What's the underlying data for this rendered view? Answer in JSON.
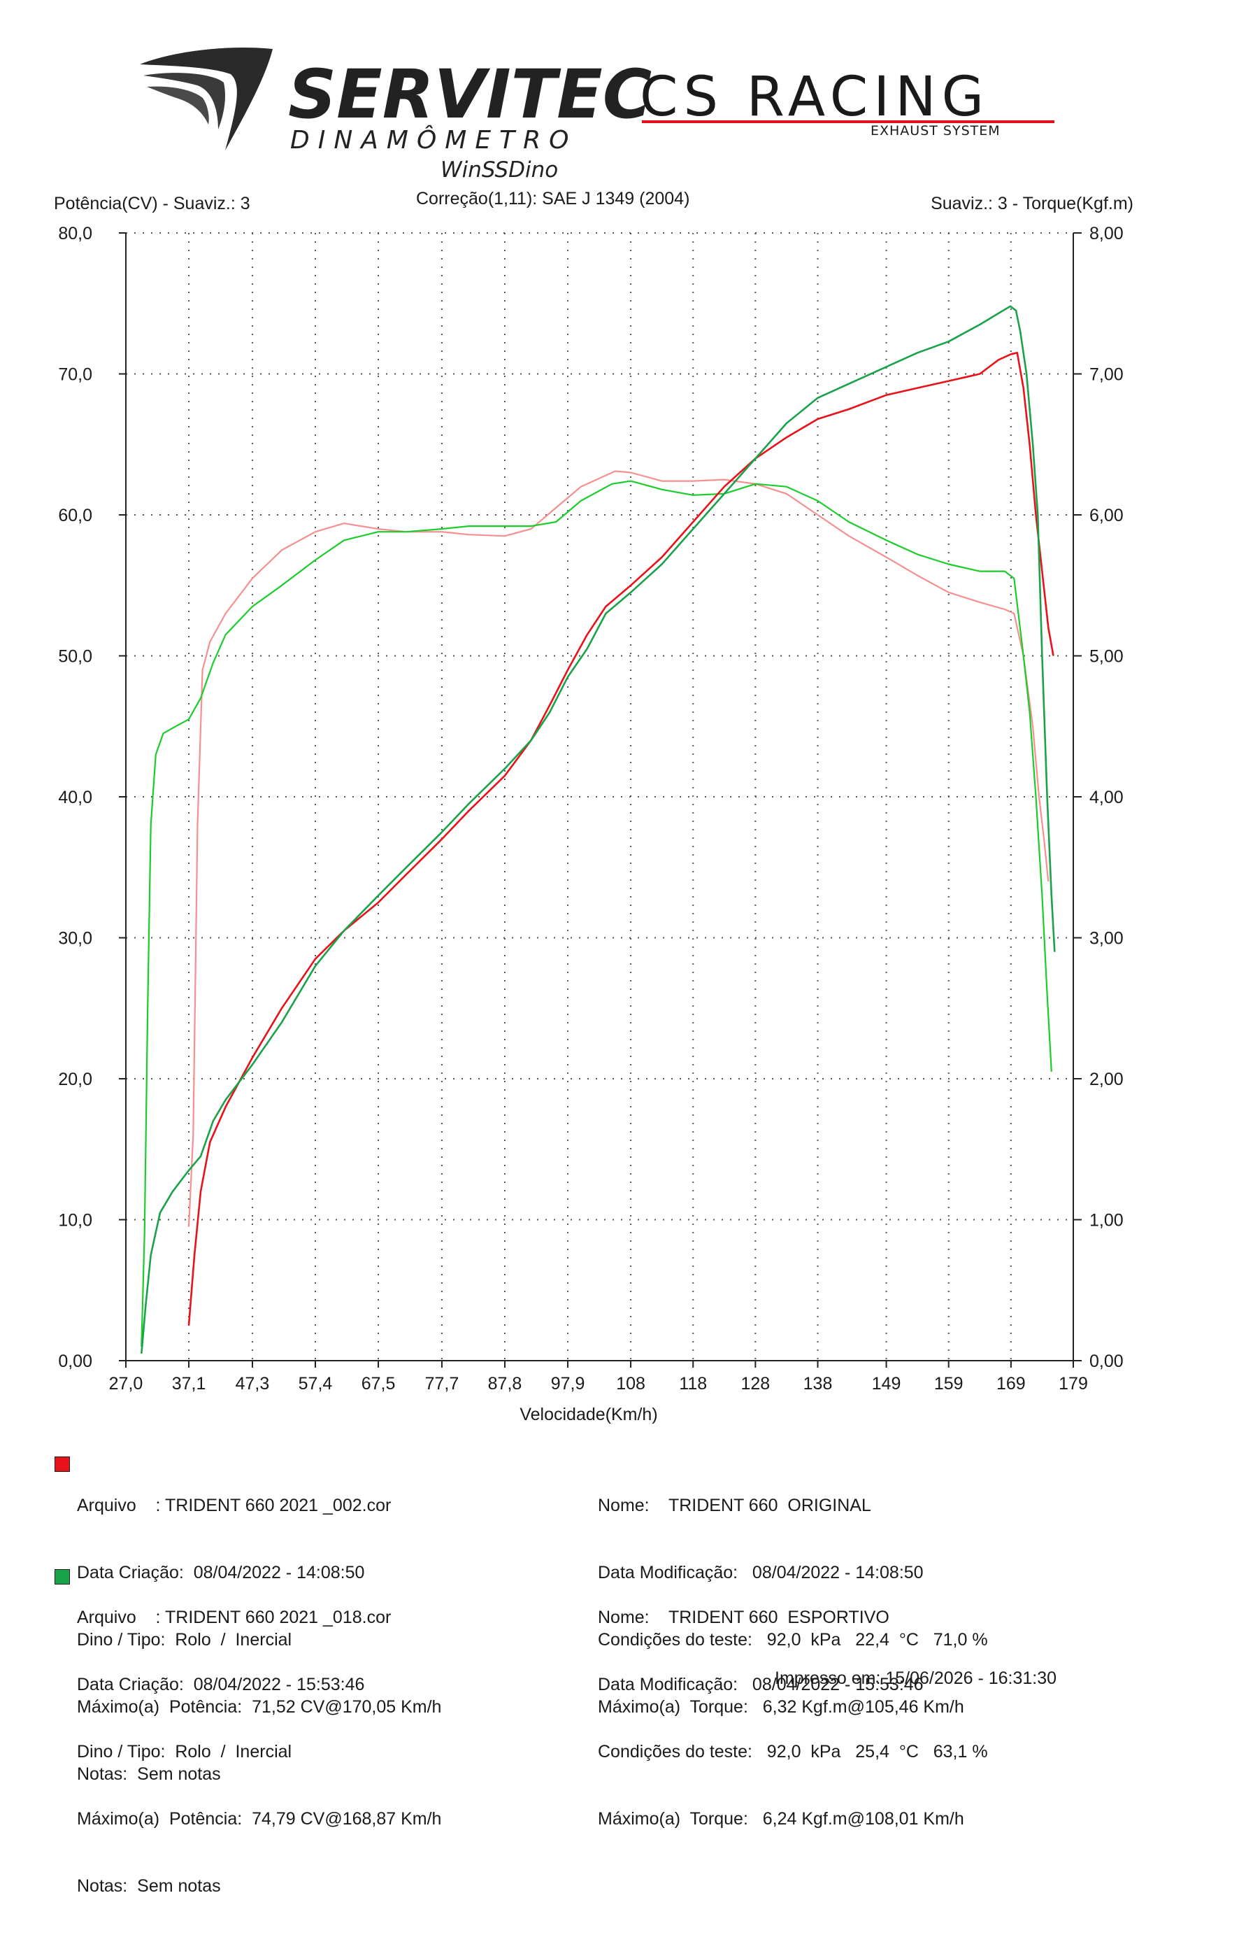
{
  "brand": {
    "servitec": "SERVITEC",
    "dinamometro": "DINAMÔMETRO",
    "software": "WinSSDino",
    "csracing": "CS RACING",
    "exhaust": "EXHAUST SYSTEM",
    "logo_red": "#e3101b"
  },
  "header": {
    "left_axis_title": "Potência(CV) - Suaviz.: 3",
    "correction": "Correção(1,11): SAE J 1349 (2004)",
    "right_axis_title": "Suaviz.: 3 - Torque(Kgf.m)"
  },
  "chart_data": {
    "type": "line",
    "xlabel": "Velocidade(Km/h)",
    "ylabel": "Potência(CV)",
    "y2label": "Torque(Kgf.m)",
    "xlim": [
      27.0,
      179
    ],
    "ylim": [
      0,
      80
    ],
    "y2lim": [
      0,
      8
    ],
    "grid": true,
    "x_tick_values": [
      27.0,
      37.1,
      47.3,
      57.4,
      67.5,
      77.7,
      87.8,
      97.9,
      108,
      118,
      128,
      138,
      149,
      159,
      169,
      179
    ],
    "x_tick_labels": [
      "27,0",
      "37,1",
      "47,3",
      "57,4",
      "67,5",
      "77,7",
      "87,8",
      "97,9",
      "108",
      "118",
      "128",
      "138",
      "149",
      "159",
      "169",
      "179"
    ],
    "y_tick_values": [
      0,
      10,
      20,
      30,
      40,
      50,
      60,
      70,
      80
    ],
    "y_tick_labels": [
      "0,00",
      "10,0",
      "20,0",
      "30,0",
      "40,0",
      "50,0",
      "60,0",
      "70,0",
      "80,0"
    ],
    "y2_tick_values": [
      0,
      1,
      2,
      3,
      4,
      5,
      6,
      7,
      8
    ],
    "y2_tick_labels": [
      "0,00",
      "1,00",
      "2,00",
      "3,00",
      "4,00",
      "5,00",
      "6,00",
      "7,00",
      "8,00"
    ],
    "series": [
      {
        "name": "TRIDENT 660 ORIGINAL",
        "kind": "power",
        "axis": "left",
        "color": "#e8131a",
        "points": [
          [
            37.1,
            2.5
          ],
          [
            38.0,
            7.5
          ],
          [
            39.0,
            12
          ],
          [
            40.5,
            15.5
          ],
          [
            43,
            18
          ],
          [
            47.3,
            21.5
          ],
          [
            52,
            25
          ],
          [
            57.4,
            28.5
          ],
          [
            62,
            30.5
          ],
          [
            67.5,
            32.5
          ],
          [
            72,
            34.5
          ],
          [
            77.7,
            37
          ],
          [
            82,
            39
          ],
          [
            87.8,
            41.5
          ],
          [
            92,
            44
          ],
          [
            95,
            46.5
          ],
          [
            97.9,
            49
          ],
          [
            101,
            51.5
          ],
          [
            104,
            53.5
          ],
          [
            108,
            55
          ],
          [
            113,
            57
          ],
          [
            118,
            59.5
          ],
          [
            123,
            62
          ],
          [
            128,
            64
          ],
          [
            133,
            65.5
          ],
          [
            138,
            66.8
          ],
          [
            143,
            67.5
          ],
          [
            149,
            68.5
          ],
          [
            154,
            69
          ],
          [
            159,
            69.5
          ],
          [
            164,
            70
          ],
          [
            167,
            71
          ],
          [
            169,
            71.4
          ],
          [
            170,
            71.5
          ],
          [
            171,
            69
          ],
          [
            172,
            65
          ],
          [
            173,
            60
          ],
          [
            174,
            56
          ],
          [
            175,
            52
          ],
          [
            175.8,
            50
          ]
        ]
      },
      {
        "name": "TRIDENT 660 ORIGINAL",
        "kind": "torque",
        "axis": "right",
        "color": "#f68f8f",
        "points": [
          [
            37.1,
            0.95
          ],
          [
            37.8,
            1.6
          ],
          [
            38.5,
            3.8
          ],
          [
            39.3,
            4.9
          ],
          [
            40.5,
            5.1
          ],
          [
            43,
            5.3
          ],
          [
            47.3,
            5.55
          ],
          [
            52,
            5.75
          ],
          [
            57.4,
            5.88
          ],
          [
            62,
            5.94
          ],
          [
            67.5,
            5.9
          ],
          [
            72,
            5.88
          ],
          [
            77.7,
            5.88
          ],
          [
            82,
            5.86
          ],
          [
            87.8,
            5.85
          ],
          [
            92,
            5.9
          ],
          [
            96,
            6.05
          ],
          [
            100,
            6.2
          ],
          [
            105.5,
            6.31
          ],
          [
            108,
            6.3
          ],
          [
            113,
            6.24
          ],
          [
            118,
            6.24
          ],
          [
            123,
            6.25
          ],
          [
            128,
            6.22
          ],
          [
            133,
            6.15
          ],
          [
            138,
            6.0
          ],
          [
            143,
            5.85
          ],
          [
            149,
            5.7
          ],
          [
            154,
            5.57
          ],
          [
            159,
            5.45
          ],
          [
            164,
            5.38
          ],
          [
            168,
            5.33
          ],
          [
            169.5,
            5.3
          ],
          [
            171,
            5.0
          ],
          [
            172.5,
            4.5
          ],
          [
            173.5,
            4.0
          ],
          [
            174.3,
            3.7
          ],
          [
            175,
            3.4
          ]
        ]
      },
      {
        "name": "TRIDENT 660 ESPORTIVO",
        "kind": "power",
        "axis": "left",
        "color": "#1aa24b",
        "points": [
          [
            29.5,
            0.5
          ],
          [
            30.2,
            4
          ],
          [
            31,
            7.5
          ],
          [
            32.5,
            10.5
          ],
          [
            34.5,
            12
          ],
          [
            37.1,
            13.5
          ],
          [
            39,
            14.5
          ],
          [
            41,
            17
          ],
          [
            43,
            18.5
          ],
          [
            47.3,
            21
          ],
          [
            52,
            24
          ],
          [
            57.4,
            28
          ],
          [
            62,
            30.5
          ],
          [
            67.5,
            33
          ],
          [
            72,
            35
          ],
          [
            77.7,
            37.5
          ],
          [
            82,
            39.5
          ],
          [
            87.8,
            42
          ],
          [
            92,
            44
          ],
          [
            95,
            46
          ],
          [
            97.9,
            48.5
          ],
          [
            101,
            50.5
          ],
          [
            104,
            53
          ],
          [
            108,
            54.5
          ],
          [
            113,
            56.5
          ],
          [
            118,
            59
          ],
          [
            123,
            61.5
          ],
          [
            128,
            64
          ],
          [
            133,
            66.5
          ],
          [
            138,
            68.3
          ],
          [
            143,
            69.3
          ],
          [
            149,
            70.5
          ],
          [
            154,
            71.5
          ],
          [
            159,
            72.3
          ],
          [
            164,
            73.5
          ],
          [
            167,
            74.3
          ],
          [
            168.9,
            74.8
          ],
          [
            169.8,
            74.5
          ],
          [
            170.5,
            73
          ],
          [
            171.5,
            70
          ],
          [
            172.5,
            65
          ],
          [
            173.3,
            60
          ],
          [
            174,
            50
          ],
          [
            174.8,
            40
          ],
          [
            175.5,
            33
          ],
          [
            176,
            29
          ]
        ]
      },
      {
        "name": "TRIDENT 660 ESPORTIVO",
        "kind": "torque",
        "axis": "right",
        "color": "#1ccc2c",
        "points": [
          [
            29.5,
            0.1
          ],
          [
            30,
            0.9
          ],
          [
            30.5,
            2.5
          ],
          [
            31,
            3.8
          ],
          [
            31.8,
            4.3
          ],
          [
            33,
            4.45
          ],
          [
            35,
            4.5
          ],
          [
            37.1,
            4.55
          ],
          [
            39,
            4.7
          ],
          [
            41,
            4.95
          ],
          [
            43,
            5.15
          ],
          [
            47.3,
            5.35
          ],
          [
            52,
            5.5
          ],
          [
            57.4,
            5.68
          ],
          [
            62,
            5.82
          ],
          [
            67.5,
            5.88
          ],
          [
            72,
            5.88
          ],
          [
            77.7,
            5.9
          ],
          [
            82,
            5.92
          ],
          [
            87.8,
            5.92
          ],
          [
            92,
            5.92
          ],
          [
            96,
            5.95
          ],
          [
            100,
            6.1
          ],
          [
            105,
            6.22
          ],
          [
            108,
            6.24
          ],
          [
            113,
            6.18
          ],
          [
            118,
            6.14
          ],
          [
            123,
            6.15
          ],
          [
            128,
            6.22
          ],
          [
            133,
            6.2
          ],
          [
            138,
            6.1
          ],
          [
            143,
            5.95
          ],
          [
            149,
            5.82
          ],
          [
            154,
            5.72
          ],
          [
            159,
            5.65
          ],
          [
            164,
            5.6
          ],
          [
            168,
            5.6
          ],
          [
            169.5,
            5.55
          ],
          [
            171,
            5.0
          ],
          [
            172,
            4.6
          ],
          [
            173,
            4.0
          ],
          [
            174,
            3.3
          ],
          [
            174.8,
            2.6
          ],
          [
            175.5,
            2.05
          ]
        ]
      }
    ]
  },
  "legend": [
    {
      "color": "#e8131a",
      "arquivo": "Arquivo    : TRIDENT 660 2021 _002.cor",
      "data_criacao": "Data Criação:  08/04/2022 - 14:08:50",
      "dino_tipo": "Dino / Tipo:  Rolo  /  Inercial",
      "maximo_potencia": "Máximo(a)  Potência:  71,52 CV@170,05 Km/h",
      "notas": "Notas:  Sem notas",
      "nome": "Nome:    TRIDENT 660  ORIGINAL",
      "data_modificacao": "Data Modificação:   08/04/2022 - 14:08:50",
      "condicoes": "Condições do teste:   92,0  kPa   22,4  °C   71,0 %",
      "maximo_torque": "Máximo(a)  Torque:   6,32 Kgf.m@105,46 Km/h"
    },
    {
      "color": "#1aa24b",
      "arquivo": "Arquivo    : TRIDENT 660 2021 _018.cor",
      "data_criacao": "Data Criação:  08/04/2022 - 15:53:46",
      "dino_tipo": "Dino / Tipo:  Rolo  /  Inercial",
      "maximo_potencia": "Máximo(a)  Potência:  74,79 CV@168,87 Km/h",
      "notas": "Notas:  Sem notas",
      "nome": "Nome:    TRIDENT 660  ESPORTIVO",
      "data_modificacao": "Data Modificação:   08/04/2022 - 15:53:46",
      "condicoes": "Condições do teste:   92,0  kPa   25,4  °C   63,1 %",
      "maximo_torque": "Máximo(a)  Torque:   6,24 Kgf.m@108,01 Km/h"
    }
  ],
  "footer": {
    "printed": "Impresso em: 15/06/2026 - 16:31:30"
  }
}
